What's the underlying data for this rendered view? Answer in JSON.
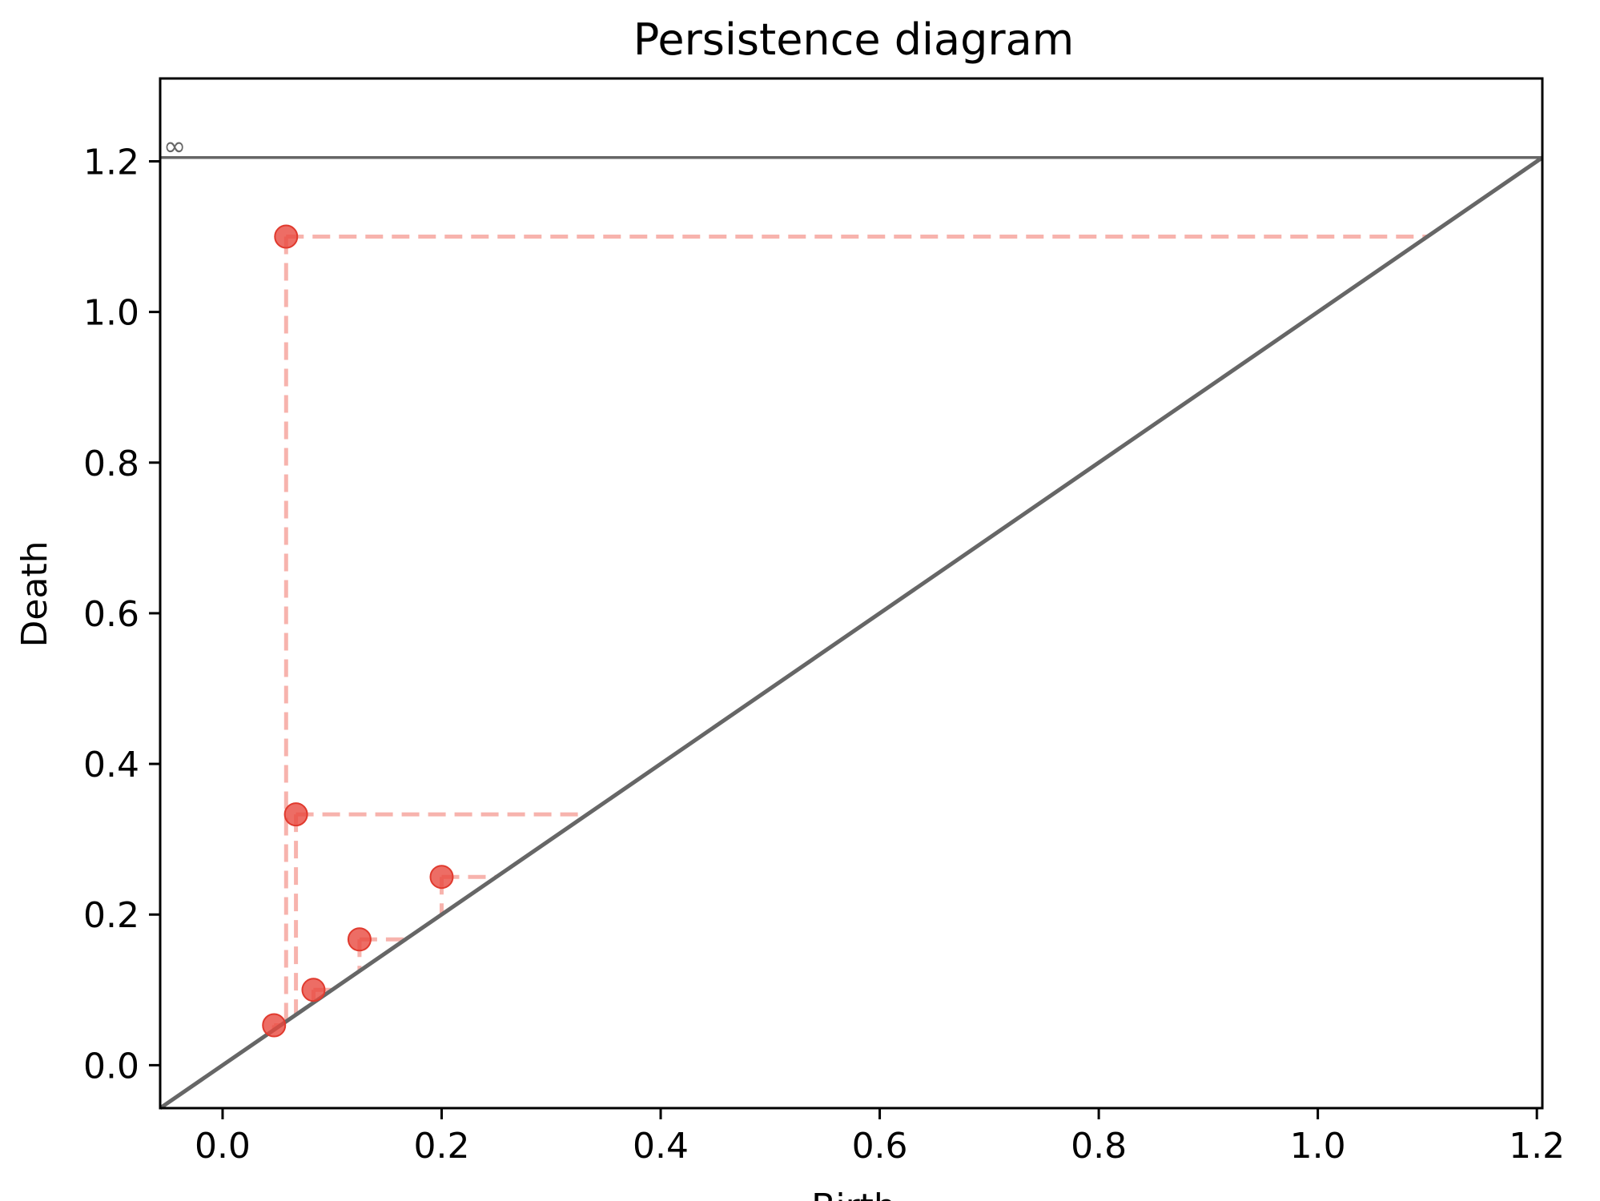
{
  "chart_data": {
    "type": "scatter",
    "title": "Persistence diagram",
    "xlabel": "Birth",
    "ylabel": "Death",
    "xlim": [
      -0.057,
      1.205
    ],
    "ylim": [
      -0.057,
      1.31
    ],
    "xticks": [
      "0.0",
      "0.2",
      "0.4",
      "0.6",
      "0.8",
      "1.0",
      "1.2"
    ],
    "xtick_values": [
      0.0,
      0.2,
      0.4,
      0.6,
      0.8,
      1.0,
      1.2
    ],
    "yticks": [
      "0.0",
      "0.2",
      "0.4",
      "0.6",
      "0.8",
      "1.0",
      "1.2"
    ],
    "ytick_values": [
      0.0,
      0.2,
      0.4,
      0.6,
      0.8,
      1.0,
      1.2
    ],
    "infinity_label": "∞",
    "infinity_level": 1.205,
    "grid": false,
    "series": [
      {
        "points": [
          {
            "x": 0.047,
            "y": 0.053
          },
          {
            "x": 0.058,
            "y": 1.1
          },
          {
            "x": 0.067,
            "y": 0.333
          },
          {
            "x": 0.083,
            "y": 0.1
          },
          {
            "x": 0.125,
            "y": 0.167
          },
          {
            "x": 0.2,
            "y": 0.25
          }
        ]
      }
    ],
    "colors": {
      "points": "#e8493e",
      "persistence_lines": "#f7b3ad",
      "diagonal": "#666666",
      "infinity_line": "#666666",
      "axes": "#000000"
    }
  }
}
